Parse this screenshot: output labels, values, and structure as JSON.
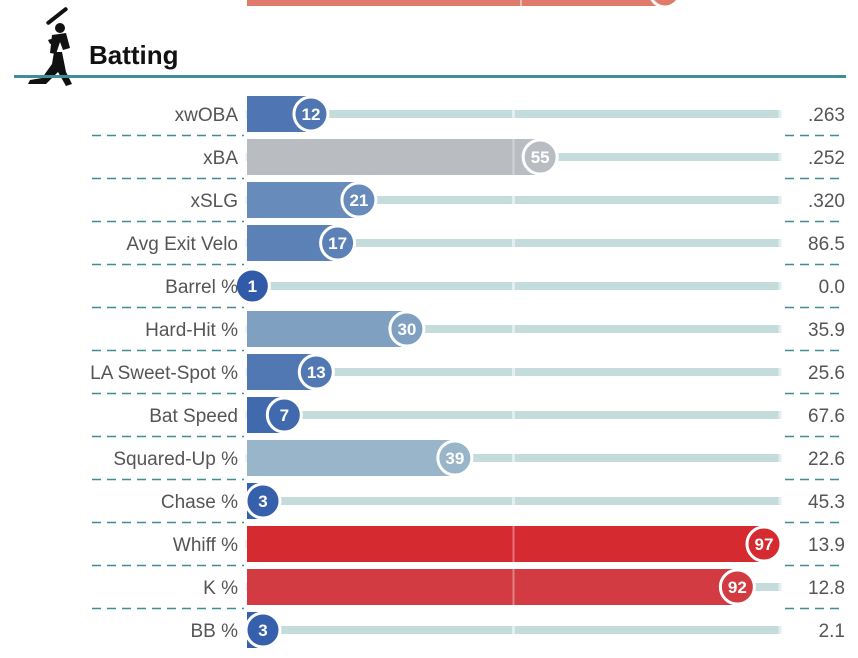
{
  "section": {
    "title": "Batting",
    "icon": "batter-icon"
  },
  "colors": {
    "header_rule": "#3d8e95",
    "dash": "#3d8e95",
    "track": "#c5dcdd",
    "track_tick": "#e3eeee",
    "bar_low": "#2e59a8",
    "bar_mid": "#b6cfd2",
    "bar_high": "#d71f26",
    "top_bar": "#e07a6a"
  },
  "chart_data": {
    "type": "bar",
    "orientation": "horizontal",
    "title": "Batting",
    "xlim": [
      0,
      100
    ],
    "categories": [
      "xwOBA",
      "xBA",
      "xSLG",
      "Avg Exit Velo",
      "Barrel %",
      "Hard-Hit %",
      "LA Sweet-Spot %",
      "Bat Speed",
      "Squared-Up %",
      "Chase %",
      "Whiff %",
      "K %",
      "BB %"
    ],
    "series": [
      {
        "values": [
          12,
          55,
          21,
          17,
          1,
          30,
          13,
          7,
          39,
          3,
          97,
          92,
          3
        ]
      }
    ],
    "stat_values": [
      ".263",
      ".252",
      ".320",
      "86.5",
      "0.0",
      "35.9",
      "25.6",
      "67.6",
      "22.6",
      "45.3",
      "13.9",
      "12.8",
      "2.1"
    ]
  }
}
